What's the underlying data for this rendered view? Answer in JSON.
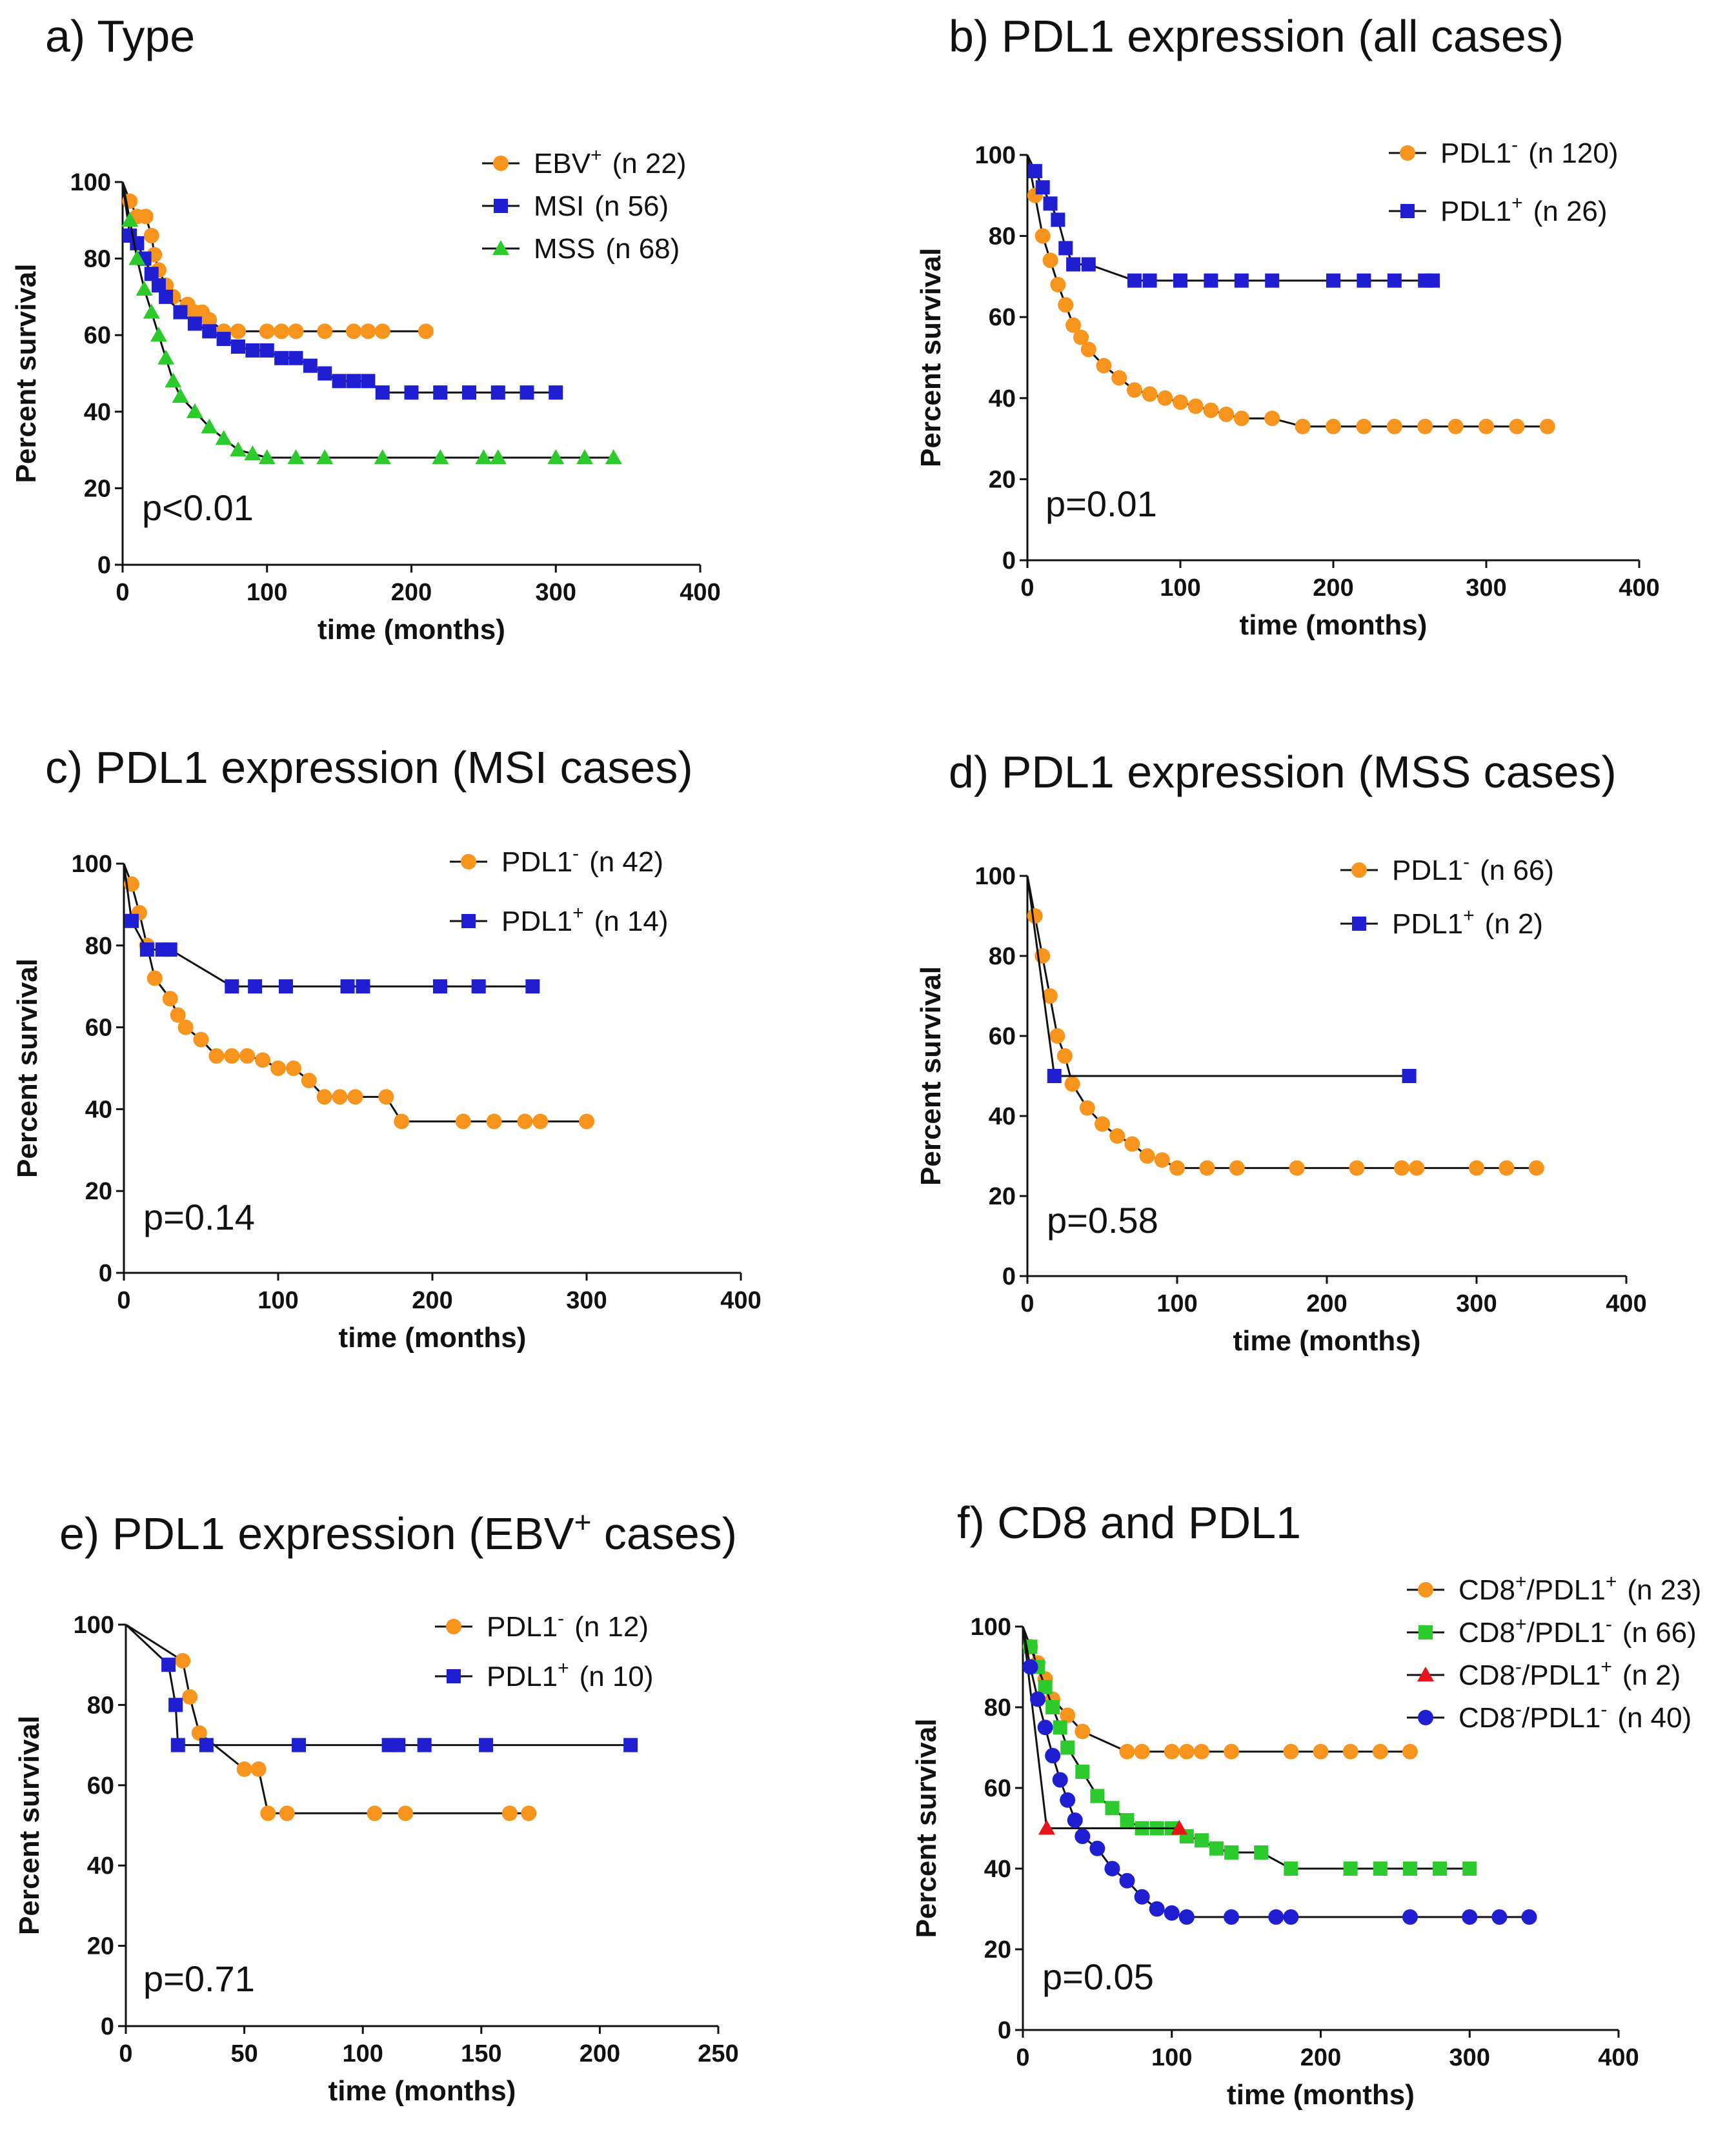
{
  "colors": {
    "orange": "#f7941d",
    "blue": "#1f1fd1",
    "green": "#2dca2d",
    "red": "#e8141c",
    "line": "#111111"
  },
  "chart_data": [
    {
      "type": "line",
      "subtype": "kaplan-meier",
      "title": "a) Type",
      "xlabel": "time (months)",
      "ylabel": "Percent survival",
      "xlim": [
        0,
        400
      ],
      "ylim": [
        0,
        100
      ],
      "xticks": [
        "0",
        "100",
        "200",
        "300",
        "400"
      ],
      "yticks": [
        "0",
        "20",
        "40",
        "60",
        "80",
        "100"
      ],
      "pvalue": "p<0.01",
      "legend_position": "top-right",
      "series": [
        {
          "name": "EBV",
          "sup": "+",
          "n": "(n 22)",
          "color": "#f7941d",
          "marker": "circle",
          "x": [
            0,
            5,
            10,
            16,
            20,
            22,
            25,
            30,
            35,
            45,
            50,
            55,
            60,
            70,
            80,
            100,
            110,
            120,
            140,
            160,
            170,
            180,
            210
          ],
          "y": [
            100,
            95,
            91,
            91,
            86,
            81,
            77,
            73,
            70,
            68,
            66,
            66,
            64,
            61,
            61,
            61,
            61,
            61,
            61,
            61,
            61,
            61,
            61
          ]
        },
        {
          "name": "MSI",
          "sup": "",
          "n": "(n 56)",
          "color": "#1f1fd1",
          "marker": "square",
          "x": [
            0,
            5,
            10,
            15,
            20,
            25,
            30,
            40,
            50,
            60,
            70,
            80,
            90,
            100,
            110,
            120,
            130,
            140,
            150,
            160,
            170,
            180,
            200,
            220,
            240,
            260,
            280,
            300
          ],
          "y": [
            100,
            86,
            84,
            80,
            76,
            73,
            70,
            66,
            63,
            61,
            59,
            57,
            56,
            56,
            54,
            54,
            52,
            50,
            48,
            48,
            48,
            45,
            45,
            45,
            45,
            45,
            45,
            45
          ]
        },
        {
          "name": "MSS",
          "sup": "",
          "n": "(n 68)",
          "color": "#2dca2d",
          "marker": "triangle",
          "x": [
            0,
            5,
            10,
            15,
            20,
            25,
            30,
            35,
            40,
            50,
            60,
            70,
            80,
            90,
            100,
            120,
            140,
            180,
            220,
            250,
            260,
            300,
            320,
            340
          ],
          "y": [
            100,
            90,
            80,
            72,
            66,
            60,
            54,
            48,
            44,
            40,
            36,
            33,
            30,
            29,
            28,
            28,
            28,
            28,
            28,
            28,
            28,
            28,
            28,
            28
          ]
        }
      ]
    },
    {
      "type": "line",
      "subtype": "kaplan-meier",
      "title": "b) PDL1 expression (all cases)",
      "xlabel": "time (months)",
      "ylabel": "Percent survival",
      "xlim": [
        0,
        400
      ],
      "ylim": [
        0,
        100
      ],
      "xticks": [
        "0",
        "100",
        "200",
        "300",
        "400"
      ],
      "yticks": [
        "0",
        "20",
        "40",
        "60",
        "80",
        "100"
      ],
      "pvalue": "p=0.01",
      "legend_position": "top-right",
      "series": [
        {
          "name": "PDL1",
          "sup": "-",
          "n": "(n 120)",
          "color": "#f7941d",
          "marker": "circle",
          "x": [
            0,
            5,
            10,
            15,
            20,
            25,
            30,
            35,
            40,
            50,
            60,
            70,
            80,
            90,
            100,
            110,
            120,
            130,
            140,
            160,
            180,
            200,
            220,
            240,
            260,
            280,
            300,
            320,
            340
          ],
          "y": [
            100,
            90,
            80,
            74,
            68,
            63,
            58,
            55,
            52,
            48,
            45,
            42,
            41,
            40,
            39,
            38,
            37,
            36,
            35,
            35,
            33,
            33,
            33,
            33,
            33,
            33,
            33,
            33,
            33
          ]
        },
        {
          "name": "PDL1",
          "sup": "+",
          "n": "(n 26)",
          "color": "#1f1fd1",
          "marker": "square",
          "x": [
            0,
            5,
            10,
            15,
            20,
            25,
            30,
            40,
            70,
            80,
            100,
            120,
            140,
            160,
            200,
            220,
            240,
            260,
            265
          ],
          "y": [
            100,
            96,
            92,
            88,
            84,
            77,
            73,
            73,
            69,
            69,
            69,
            69,
            69,
            69,
            69,
            69,
            69,
            69,
            69
          ]
        }
      ]
    },
    {
      "type": "line",
      "subtype": "kaplan-meier",
      "title": "c) PDL1 expression (MSI cases)",
      "xlabel": "time (months)",
      "ylabel": "Percent survival",
      "xlim": [
        0,
        400
      ],
      "ylim": [
        0,
        100
      ],
      "xticks": [
        "0",
        "100",
        "200",
        "300",
        "400"
      ],
      "yticks": [
        "0",
        "20",
        "40",
        "60",
        "80",
        "100"
      ],
      "pvalue": "p=0.14",
      "legend_position": "top-right",
      "series": [
        {
          "name": "PDL1",
          "sup": "-",
          "n": "(n 42)",
          "color": "#f7941d",
          "marker": "circle",
          "x": [
            0,
            5,
            10,
            15,
            20,
            30,
            35,
            40,
            50,
            60,
            70,
            80,
            90,
            100,
            110,
            120,
            130,
            140,
            150,
            170,
            180,
            220,
            240,
            260,
            270,
            300
          ],
          "y": [
            100,
            95,
            88,
            80,
            72,
            67,
            63,
            60,
            57,
            53,
            53,
            53,
            52,
            50,
            50,
            47,
            43,
            43,
            43,
            43,
            37,
            37,
            37,
            37,
            37,
            37
          ]
        },
        {
          "name": "PDL1",
          "sup": "+",
          "n": "(n 14)",
          "color": "#1f1fd1",
          "marker": "square",
          "x": [
            0,
            5,
            15,
            25,
            30,
            70,
            85,
            105,
            145,
            155,
            205,
            230,
            265
          ],
          "y": [
            100,
            86,
            79,
            79,
            79,
            70,
            70,
            70,
            70,
            70,
            70,
            70,
            70
          ]
        }
      ]
    },
    {
      "type": "line",
      "subtype": "kaplan-meier",
      "title": "d) PDL1 expression (MSS cases)",
      "xlabel": "time (months)",
      "ylabel": "Percent survival",
      "xlim": [
        0,
        400
      ],
      "ylim": [
        0,
        100
      ],
      "xticks": [
        "0",
        "100",
        "200",
        "300",
        "400"
      ],
      "yticks": [
        "0",
        "20",
        "40",
        "60",
        "80",
        "100"
      ],
      "pvalue": "p=0.58",
      "legend_position": "top-right",
      "series": [
        {
          "name": "PDL1",
          "sup": "-",
          "n": "(n 66)",
          "color": "#f7941d",
          "marker": "circle",
          "x": [
            0,
            5,
            10,
            15,
            20,
            25,
            30,
            40,
            50,
            60,
            70,
            80,
            90,
            100,
            120,
            140,
            180,
            220,
            250,
            260,
            300,
            320,
            340
          ],
          "y": [
            100,
            90,
            80,
            70,
            60,
            55,
            48,
            42,
            38,
            35,
            33,
            30,
            29,
            27,
            27,
            27,
            27,
            27,
            27,
            27,
            27,
            27,
            27
          ]
        },
        {
          "name": "PDL1",
          "sup": "+",
          "n": "(n 2)",
          "color": "#1f1fd1",
          "marker": "square",
          "x": [
            0,
            18,
            255
          ],
          "y": [
            100,
            50,
            50
          ]
        }
      ]
    },
    {
      "type": "line",
      "subtype": "kaplan-meier",
      "title": "e) PDL1 expression (EBV",
      "title_sup": "+",
      "title_tail": " cases)",
      "xlabel": "time (months)",
      "ylabel": "Percent survival",
      "xlim": [
        0,
        250
      ],
      "ylim": [
        0,
        100
      ],
      "xticks": [
        "0",
        "50",
        "100",
        "150",
        "200",
        "250"
      ],
      "yticks": [
        "0",
        "20",
        "40",
        "60",
        "80",
        "100"
      ],
      "pvalue": "p=0.71",
      "legend_position": "top-right",
      "series": [
        {
          "name": "PDL1",
          "sup": "-",
          "n": "(n 12)",
          "color": "#f7941d",
          "marker": "circle",
          "x": [
            0,
            24,
            27,
            31,
            50,
            56,
            60,
            68,
            105,
            118,
            162,
            170
          ],
          "y": [
            100,
            91,
            82,
            73,
            64,
            64,
            53,
            53,
            53,
            53,
            53,
            53
          ]
        },
        {
          "name": "PDL1",
          "sup": "+",
          "n": "(n 10)",
          "color": "#1f1fd1",
          "marker": "square",
          "x": [
            0,
            18,
            21,
            22,
            34,
            73,
            111,
            115,
            126,
            152,
            213
          ],
          "y": [
            100,
            90,
            80,
            70,
            70,
            70,
            70,
            70,
            70,
            70,
            70
          ]
        }
      ]
    },
    {
      "type": "line",
      "subtype": "kaplan-meier",
      "title": "f) CD8 and PDL1",
      "xlabel": "time (months)",
      "ylabel": "Percent survival",
      "xlim": [
        0,
        400
      ],
      "ylim": [
        0,
        100
      ],
      "xticks": [
        "0",
        "100",
        "200",
        "300",
        "400"
      ],
      "yticks": [
        "0",
        "20",
        "40",
        "60",
        "80",
        "100"
      ],
      "pvalue": "p=0.05",
      "legend_position": "top-right",
      "series": [
        {
          "name": "CD8",
          "sup": "+",
          "name2": "/PDL1",
          "sup2": "+",
          "n": "(n 23)",
          "color": "#f7941d",
          "marker": "circle",
          "x": [
            0,
            5,
            10,
            15,
            20,
            30,
            40,
            70,
            80,
            100,
            110,
            120,
            140,
            180,
            200,
            220,
            240,
            260
          ],
          "y": [
            100,
            95,
            91,
            87,
            82,
            78,
            74,
            69,
            69,
            69,
            69,
            69,
            69,
            69,
            69,
            69,
            69,
            69
          ]
        },
        {
          "name": "CD8",
          "sup": "+",
          "name2": "/PDL1",
          "sup2": "-",
          "n": "(n 66)",
          "color": "#2dca2d",
          "marker": "square",
          "x": [
            0,
            5,
            10,
            15,
            20,
            25,
            30,
            40,
            50,
            60,
            70,
            80,
            90,
            100,
            110,
            120,
            130,
            140,
            160,
            180,
            220,
            240,
            260,
            280,
            300
          ],
          "y": [
            100,
            95,
            90,
            85,
            80,
            75,
            70,
            64,
            58,
            55,
            52,
            50,
            50,
            50,
            48,
            47,
            45,
            44,
            44,
            40,
            40,
            40,
            40,
            40,
            40
          ]
        },
        {
          "name": "CD8",
          "sup": "-",
          "name2": "/PDL1",
          "sup2": "+",
          "n": "(n 2)",
          "color": "#e8141c",
          "marker": "triangle",
          "x": [
            0,
            16,
            105
          ],
          "y": [
            100,
            50,
            50
          ]
        },
        {
          "name": "CD8",
          "sup": "-",
          "name2": "/PDL1",
          "sup2": "-",
          "n": "(n 40)",
          "color": "#1f1fd1",
          "marker": "circle",
          "x": [
            0,
            5,
            10,
            15,
            20,
            25,
            30,
            35,
            40,
            50,
            60,
            70,
            80,
            90,
            100,
            110,
            140,
            170,
            180,
            260,
            300,
            320,
            340
          ],
          "y": [
            100,
            90,
            82,
            75,
            68,
            62,
            57,
            52,
            48,
            45,
            40,
            37,
            33,
            30,
            29,
            28,
            28,
            28,
            28,
            28,
            28,
            28,
            28
          ]
        }
      ]
    }
  ]
}
